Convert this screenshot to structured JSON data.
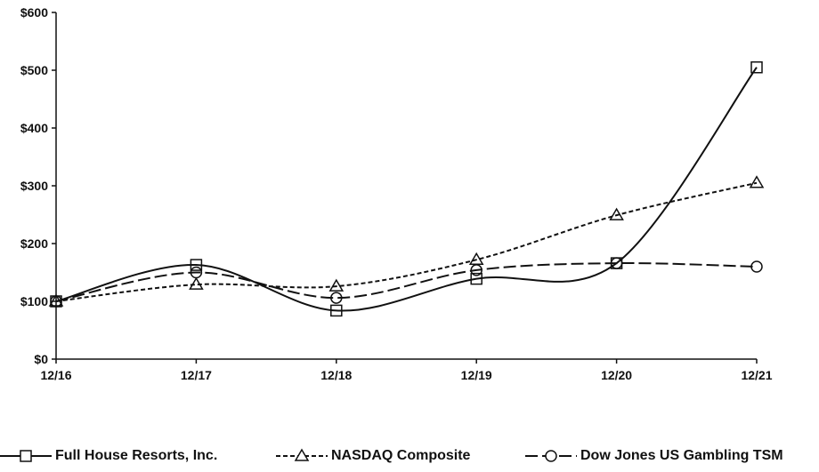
{
  "chart_data": {
    "type": "line",
    "x": [
      "12/16",
      "12/17",
      "12/18",
      "12/19",
      "12/20",
      "12/21"
    ],
    "ylim": [
      0,
      600
    ],
    "yticks": [
      0,
      100,
      200,
      300,
      400,
      500,
      600
    ],
    "ytick_labels": [
      "$0",
      "$100",
      "$200",
      "$300",
      "$400",
      "$500",
      "$600"
    ],
    "grid": false,
    "legend_position": "bottom",
    "series": [
      {
        "name": "Full House Resorts, Inc.",
        "values": [
          100,
          163,
          84,
          139,
          166,
          505
        ],
        "style": "solid",
        "marker": "square",
        "color": "#111111"
      },
      {
        "name": "NASDAQ Composite",
        "values": [
          100,
          129,
          126,
          172,
          249,
          305
        ],
        "style": "dotted",
        "marker": "triangle",
        "color": "#111111"
      },
      {
        "name": "Dow Jones US Gambling TSM",
        "values": [
          100,
          150,
          106,
          154,
          166,
          160
        ],
        "style": "dashed",
        "marker": "circle",
        "color": "#111111"
      }
    ]
  }
}
